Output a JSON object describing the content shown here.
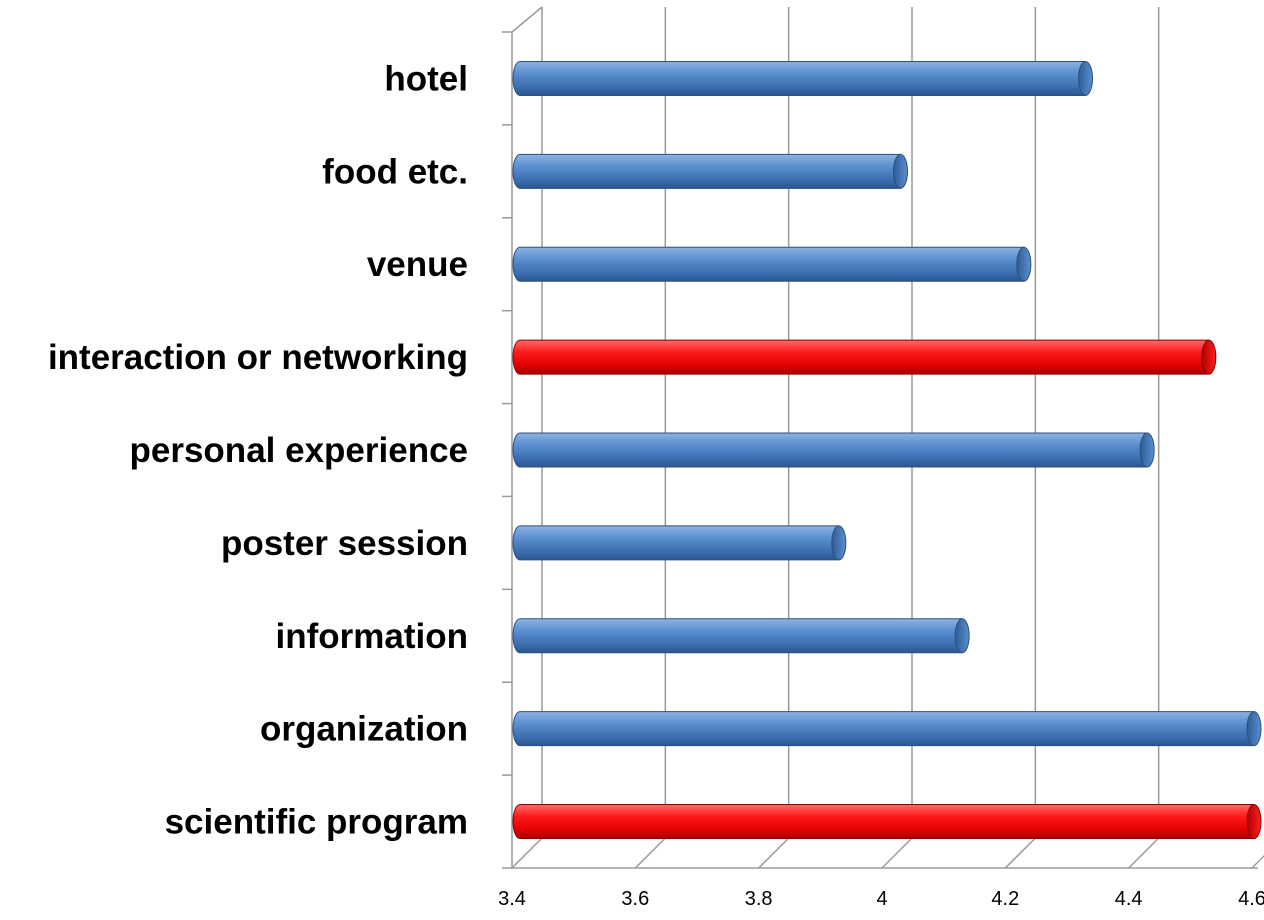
{
  "chart_data": {
    "type": "bar",
    "orientation": "horizontal",
    "style": "3d-cylinder",
    "title": "",
    "xlabel": "",
    "ylabel": "",
    "categories": [
      "scientific program",
      "organization",
      "information",
      "poster session",
      "personal experience",
      "interaction or networking",
      "venue",
      "food etc.",
      "hotel"
    ],
    "values": [
      4.63,
      4.63,
      4.13,
      3.93,
      4.43,
      4.53,
      4.23,
      4.03,
      4.33
    ],
    "highlighted": [
      "scientific program",
      "interaction or networking"
    ],
    "colors": {
      "default_bar": "#4f81bd",
      "highlight_bar": "#ff0000"
    },
    "xlim": [
      3.4,
      4.6
    ],
    "xticks": [
      "3.4",
      "3.6",
      "3.8",
      "4",
      "4.2",
      "4.4",
      "4.6"
    ],
    "grid": true,
    "legend": "none"
  }
}
